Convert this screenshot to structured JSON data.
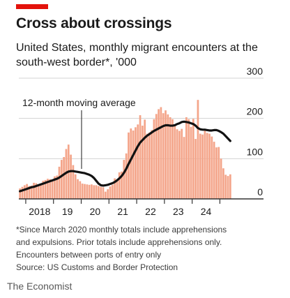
{
  "colors": {
    "brand_red": "#e3120b",
    "bar": "#f4a58a",
    "line": "#121212",
    "gridline": "#d3d3d3",
    "axis": "#333333"
  },
  "header": {
    "title": "Cross about crossings",
    "subtitle": "United States, monthly migrant encounters at the south-west border*, '000"
  },
  "footnote": {
    "lines": [
      "*Since March 2020 monthly totals include apprehensions",
      "and expulsions. Prior totals include apprehensions only.",
      "Encounters between ports of entry only",
      "Source: US Customs and Border Protection"
    ]
  },
  "publisher": "The Economist",
  "chart_data": {
    "type": "bar",
    "overlay_type": "line",
    "title": "Cross about crossings",
    "subtitle": "United States, monthly migrant encounters at the south-west border*, '000",
    "xlabel": "",
    "ylabel": "",
    "ylim": [
      0,
      300
    ],
    "y_ticks": [
      0,
      100,
      200,
      300
    ],
    "x_tick_labels": [
      "2018",
      "19",
      "20",
      "21",
      "22",
      "23",
      "24"
    ],
    "x_start": "2017-10",
    "x_end": "2024-06",
    "grid": "horizontal",
    "annotation": "12-month moving average",
    "series": [
      {
        "kind": "bar",
        "values": [
          26,
          30,
          34,
          37,
          32,
          33,
          40,
          39,
          34,
          38,
          45,
          47,
          50,
          49,
          48,
          56,
          58,
          80,
          97,
          104,
          124,
          135,
          110,
          84,
          61,
          49,
          44,
          38,
          37,
          36,
          35,
          36,
          34,
          34,
          32,
          30,
          29,
          18,
          24,
          31,
          35,
          51,
          49,
          66,
          68,
          97,
          113,
          165,
          175,
          170,
          178,
          185,
          208,
          182,
          197,
          162,
          165,
          171,
          198,
          211,
          223,
          228,
          213,
          220,
          210,
          203,
          198,
          184,
          173,
          169,
          174,
          154,
          203,
          198,
          179,
          199,
          149,
          246,
          162,
          160,
          171,
          164,
          162,
          155,
          142,
          128,
          129,
          100,
          76,
          60,
          57,
          61
        ]
      },
      {
        "kind": "line",
        "name": "12-month moving average",
        "values": [
          19,
          21,
          23,
          25,
          27,
          29,
          30,
          32,
          34,
          36,
          38,
          40,
          42,
          44,
          46,
          48,
          50,
          53,
          57,
          61,
          65,
          68,
          69,
          69,
          68,
          67,
          66,
          65,
          64,
          62,
          60,
          57,
          52,
          45,
          38,
          34,
          33,
          34,
          35,
          37,
          39,
          42,
          46,
          51,
          57,
          65,
          75,
          87,
          98,
          109,
          120,
          131,
          140,
          146,
          152,
          157,
          161,
          165,
          169,
          172,
          175,
          178,
          181,
          183,
          183,
          182,
          182,
          183,
          186,
          188,
          191,
          192,
          191,
          190,
          188,
          186,
          182,
          176,
          173,
          172,
          172,
          171,
          170,
          170,
          171,
          171,
          169,
          166,
          162,
          156,
          150,
          144
        ]
      }
    ]
  }
}
